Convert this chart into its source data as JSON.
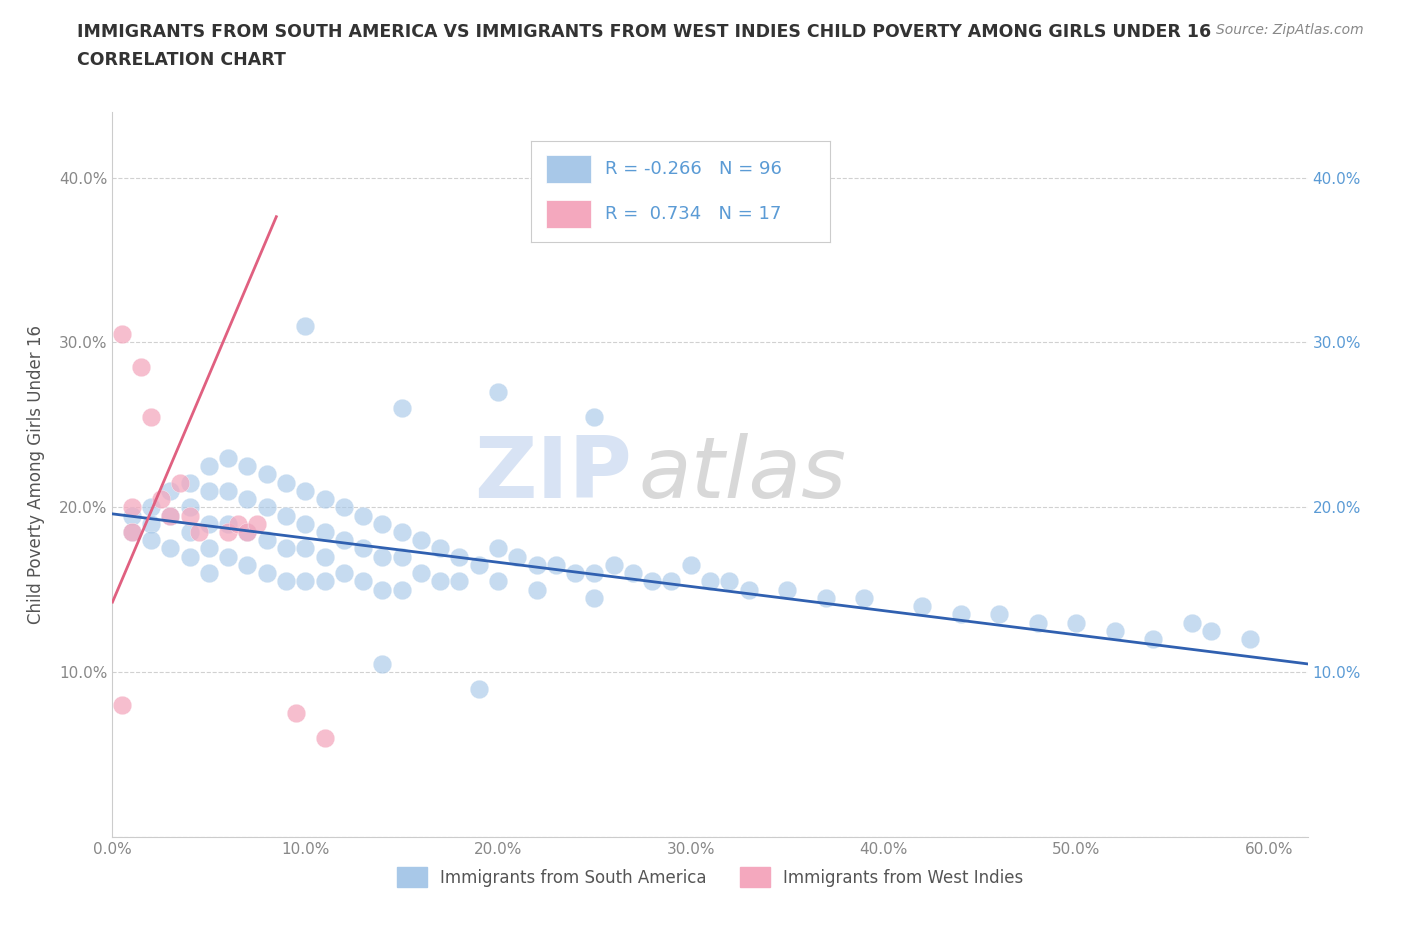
{
  "title_line1": "IMMIGRANTS FROM SOUTH AMERICA VS IMMIGRANTS FROM WEST INDIES CHILD POVERTY AMONG GIRLS UNDER 16",
  "title_line2": "CORRELATION CHART",
  "source": "Source: ZipAtlas.com",
  "ylabel": "Child Poverty Among Girls Under 16",
  "xlim": [
    0.0,
    0.62
  ],
  "ylim": [
    0.0,
    0.44
  ],
  "xticks": [
    0.0,
    0.1,
    0.2,
    0.3,
    0.4,
    0.5,
    0.6
  ],
  "yticks": [
    0.0,
    0.1,
    0.2,
    0.3,
    0.4
  ],
  "xtick_labels": [
    "0.0%",
    "10.0%",
    "20.0%",
    "30.0%",
    "40.0%",
    "50.0%",
    "60.0%"
  ],
  "ytick_labels_left": [
    "",
    "10.0%",
    "20.0%",
    "30.0%",
    "40.0%"
  ],
  "ytick_labels_right": [
    "",
    "10.0%",
    "20.0%",
    "30.0%",
    "40.0%"
  ],
  "legend_label1": "Immigrants from South America",
  "legend_label2": "Immigrants from West Indies",
  "R1": -0.266,
  "N1": 96,
  "R2": 0.734,
  "N2": 17,
  "color_blue": "#a8c8e8",
  "color_pink": "#f4a8be",
  "line_color_blue": "#3060b0",
  "line_color_pink": "#e06080",
  "watermark_zip": "ZIP",
  "watermark_atlas": "atlas",
  "title_color": "#333333",
  "axis_label_color": "#555555",
  "tick_color": "#888888",
  "tick_color_blue": "#5b9bd5",
  "grid_color": "#cccccc",
  "blue_scatter_x": [
    0.01,
    0.01,
    0.02,
    0.02,
    0.02,
    0.03,
    0.03,
    0.03,
    0.04,
    0.04,
    0.04,
    0.04,
    0.05,
    0.05,
    0.05,
    0.05,
    0.05,
    0.06,
    0.06,
    0.06,
    0.06,
    0.07,
    0.07,
    0.07,
    0.07,
    0.08,
    0.08,
    0.08,
    0.08,
    0.09,
    0.09,
    0.09,
    0.09,
    0.1,
    0.1,
    0.1,
    0.1,
    0.11,
    0.11,
    0.11,
    0.11,
    0.12,
    0.12,
    0.12,
    0.13,
    0.13,
    0.13,
    0.14,
    0.14,
    0.14,
    0.15,
    0.15,
    0.15,
    0.16,
    0.16,
    0.17,
    0.17,
    0.18,
    0.18,
    0.19,
    0.2,
    0.2,
    0.21,
    0.22,
    0.22,
    0.23,
    0.24,
    0.25,
    0.25,
    0.26,
    0.27,
    0.28,
    0.29,
    0.3,
    0.31,
    0.32,
    0.33,
    0.35,
    0.37,
    0.39,
    0.42,
    0.44,
    0.46,
    0.48,
    0.5,
    0.52,
    0.54,
    0.56,
    0.57,
    0.59,
    0.1,
    0.15,
    0.2,
    0.25,
    0.14,
    0.19
  ],
  "blue_scatter_y": [
    0.195,
    0.185,
    0.2,
    0.19,
    0.18,
    0.21,
    0.195,
    0.175,
    0.215,
    0.2,
    0.185,
    0.17,
    0.225,
    0.21,
    0.19,
    0.175,
    0.16,
    0.23,
    0.21,
    0.19,
    0.17,
    0.225,
    0.205,
    0.185,
    0.165,
    0.22,
    0.2,
    0.18,
    0.16,
    0.215,
    0.195,
    0.175,
    0.155,
    0.21,
    0.19,
    0.175,
    0.155,
    0.205,
    0.185,
    0.17,
    0.155,
    0.2,
    0.18,
    0.16,
    0.195,
    0.175,
    0.155,
    0.19,
    0.17,
    0.15,
    0.185,
    0.17,
    0.15,
    0.18,
    0.16,
    0.175,
    0.155,
    0.17,
    0.155,
    0.165,
    0.175,
    0.155,
    0.17,
    0.165,
    0.15,
    0.165,
    0.16,
    0.16,
    0.145,
    0.165,
    0.16,
    0.155,
    0.155,
    0.165,
    0.155,
    0.155,
    0.15,
    0.15,
    0.145,
    0.145,
    0.14,
    0.135,
    0.135,
    0.13,
    0.13,
    0.125,
    0.12,
    0.13,
    0.125,
    0.12,
    0.31,
    0.26,
    0.27,
    0.255,
    0.105,
    0.09
  ],
  "pink_scatter_x": [
    0.005,
    0.005,
    0.01,
    0.01,
    0.015,
    0.02,
    0.025,
    0.03,
    0.035,
    0.04,
    0.045,
    0.06,
    0.065,
    0.07,
    0.075,
    0.095,
    0.11
  ],
  "pink_scatter_y": [
    0.305,
    0.08,
    0.2,
    0.185,
    0.285,
    0.255,
    0.205,
    0.195,
    0.215,
    0.195,
    0.185,
    0.185,
    0.19,
    0.185,
    0.19,
    0.075,
    0.06
  ]
}
